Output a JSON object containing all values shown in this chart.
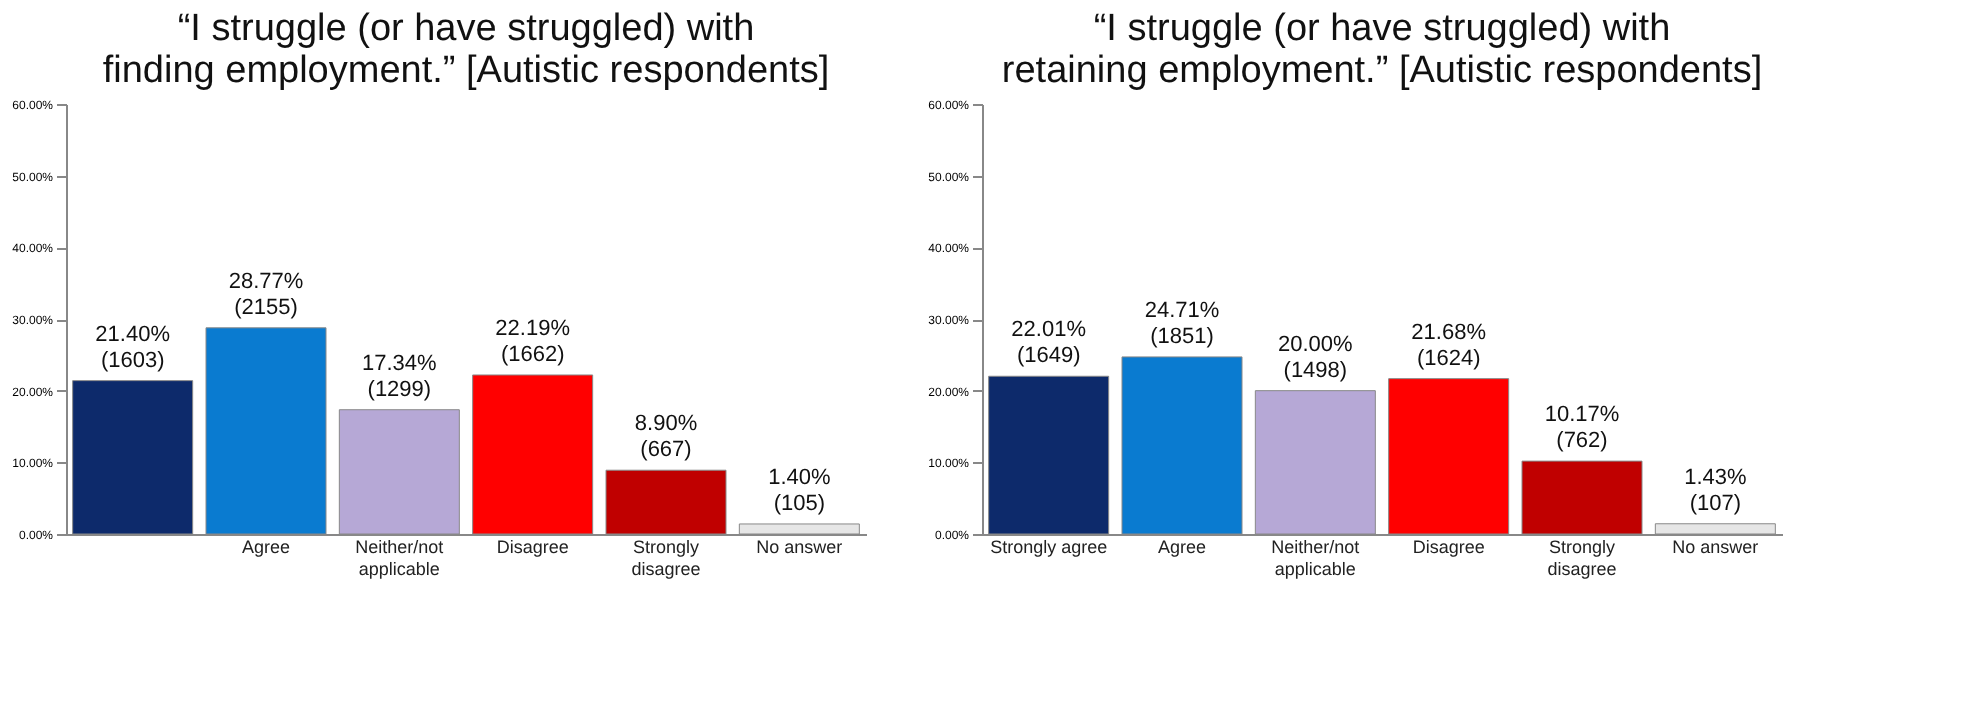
{
  "chart_data": [
    {
      "type": "bar",
      "title": "“I struggle (or have struggled) with\nfinding employment.” [Autistic respondents]",
      "categories": [
        null,
        "Agree",
        "Neither/not applicable",
        "Disagree",
        "Strongly disagree",
        "No answer"
      ],
      "values": [
        21.4,
        28.77,
        17.34,
        22.19,
        8.9,
        1.4
      ],
      "colors": [
        "#0d2a6b",
        "#0a7bd0",
        "#b6a8d6",
        "#ff0000",
        "#c00000",
        "#e6e6e6"
      ],
      "value_labels": [
        "21.40%\n(1603)",
        "28.77%\n(2155)",
        "17.34%\n(1299)",
        "22.19%\n(1662)",
        "8.90%\n(667)",
        "1.40%\n(105)"
      ],
      "ylim": [
        0,
        60
      ],
      "yticks": [
        {
          "value": 0,
          "label": "0.00%"
        },
        {
          "value": 10,
          "label": "10.00%"
        },
        {
          "value": 20,
          "label": "20.00%"
        },
        {
          "value": 30,
          "label": "30.00%"
        },
        {
          "value": 40,
          "label": "40.00%"
        },
        {
          "value": 50,
          "label": "50.00%"
        },
        {
          "value": 60,
          "label": "60.00%"
        }
      ],
      "grid": false
    },
    {
      "type": "bar",
      "title": "“I struggle (or have struggled) with\nretaining employment.” [Autistic respondents]",
      "categories": [
        "Strongly agree",
        "Agree",
        "Neither/not applicable",
        "Disagree",
        "Strongly disagree",
        "No answer"
      ],
      "values": [
        22.01,
        24.71,
        20.0,
        21.68,
        10.17,
        1.43
      ],
      "colors": [
        "#0d2a6b",
        "#0a7bd0",
        "#b6a8d6",
        "#ff0000",
        "#c00000",
        "#e6e6e6"
      ],
      "value_labels": [
        "22.01%\n(1649)",
        "24.71%\n(1851)",
        "20.00%\n(1498)",
        "21.68%\n(1624)",
        "10.17%\n(762)",
        "1.43%\n(107)"
      ],
      "ylim": [
        0,
        60
      ],
      "yticks": [
        {
          "value": 0,
          "label": "0.00%"
        },
        {
          "value": 10,
          "label": "10.00%"
        },
        {
          "value": 20,
          "label": "20.00%"
        },
        {
          "value": 30,
          "label": "30.00%"
        },
        {
          "value": 40,
          "label": "40.00%"
        },
        {
          "value": 50,
          "label": "50.00%"
        },
        {
          "value": 60,
          "label": "60.00%"
        }
      ],
      "grid": false
    }
  ]
}
